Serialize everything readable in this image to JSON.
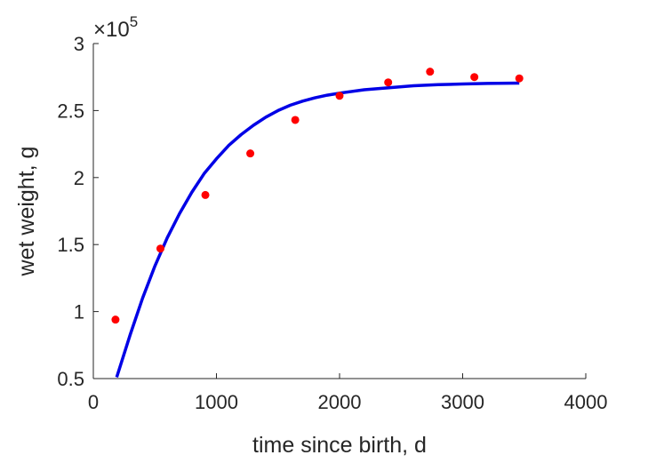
{
  "chart_data": {
    "type": "scatter",
    "title": "",
    "xlabel": "time since birth, d",
    "ylabel": "wet weight, g",
    "xlim": [
      0,
      4000
    ],
    "ylim": [
      50000,
      300000
    ],
    "xticks": [
      0,
      1000,
      2000,
      3000,
      4000
    ],
    "yticks": [
      50000,
      100000,
      150000,
      200000,
      250000,
      300000
    ],
    "y_tick_labels": [
      "0.5",
      "1",
      "1.5",
      "2",
      "2.5",
      "3"
    ],
    "y_multiplier": {
      "base": "10",
      "exponent": "5",
      "symbol": "×"
    },
    "grid": false,
    "legend": "none",
    "series": [
      {
        "kind": "points",
        "color": "#ff0000",
        "x": [
          180,
          545,
          910,
          1275,
          1640,
          2000,
          2395,
          2735,
          3095,
          3460
        ],
        "y": [
          94000,
          147000,
          187000,
          218000,
          243000,
          261000,
          271000,
          279000,
          275000,
          274000
        ]
      },
      {
        "kind": "line",
        "color": "#0000e6",
        "x": [
          190,
          300,
          400,
          500,
          600,
          700,
          800,
          900,
          1000,
          1100,
          1200,
          1300,
          1400,
          1500,
          1600,
          1700,
          1800,
          1900,
          2000,
          2200,
          2400,
          2600,
          2800,
          3000,
          3200,
          3460
        ],
        "y": [
          51000,
          83000,
          110000,
          134000,
          155000,
          173000,
          189000,
          203000,
          214000,
          224000,
          232000,
          239000,
          245000,
          250000,
          254000,
          257000,
          259500,
          261500,
          263000,
          265500,
          267000,
          268500,
          269300,
          269800,
          270200,
          270500
        ]
      }
    ]
  }
}
